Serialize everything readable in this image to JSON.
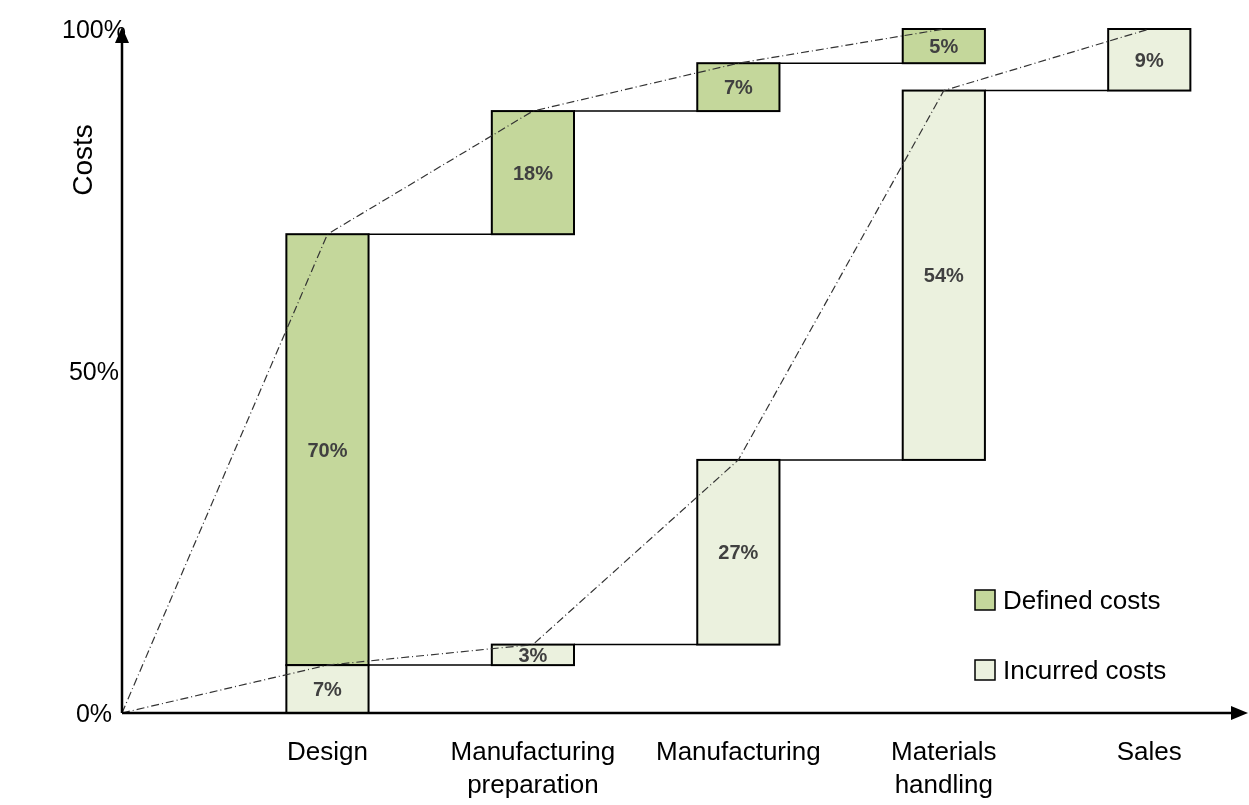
{
  "chart_data": {
    "type": "bar",
    "ylabel": "Costs",
    "categories": [
      null,
      "Design",
      "Manufacturing preparation",
      "Manufacturing",
      "Materials handling",
      "Sales"
    ],
    "series": [
      {
        "name": "Defined costs",
        "color": "#c4d79b",
        "values": [
          null,
          63,
          18,
          7,
          5,
          null
        ],
        "base": [
          null,
          7,
          70,
          88,
          95,
          null
        ],
        "value_labels": [
          null,
          "70%",
          "18%",
          "7%",
          "5%",
          null
        ]
      },
      {
        "name": "Incurred costs",
        "color": "#ebf1de",
        "values": [
          null,
          7,
          3,
          27,
          54,
          9
        ],
        "base": [
          null,
          0,
          7,
          10,
          37,
          91
        ],
        "value_labels": [
          null,
          "7%",
          "3%",
          "27%",
          "54%",
          "9%"
        ]
      },
      {
        "type": "line",
        "color": "#333333",
        "line_style": "dashed",
        "values": [
          0,
          70,
          88,
          95,
          100,
          null
        ]
      },
      {
        "type": "line",
        "color": "#333333",
        "line_style": "dashed",
        "values": [
          0,
          7,
          10,
          37,
          91,
          100
        ]
      }
    ],
    "ylim": [
      0,
      100
    ],
    "yticks": [
      {
        "value": 0,
        "label": "0%"
      },
      {
        "value": 50,
        "label": "50%"
      },
      {
        "value": 100,
        "label": "100%"
      }
    ],
    "legend": "bottom right"
  }
}
